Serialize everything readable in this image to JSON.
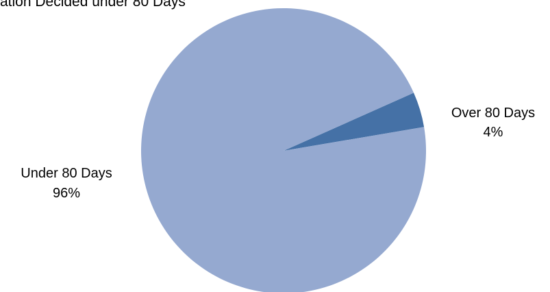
{
  "chart_data": {
    "type": "pie",
    "title": "ation Decided under 80 Days",
    "start_angle_deg": -24,
    "direction": "clockwise",
    "slices": [
      {
        "label": "Over 80 Days",
        "value": 4,
        "display": "4%",
        "color": "#4571a6"
      },
      {
        "label": "Under 80 Days",
        "value": 96,
        "display": "96%",
        "color": "#95a9d0"
      }
    ]
  }
}
